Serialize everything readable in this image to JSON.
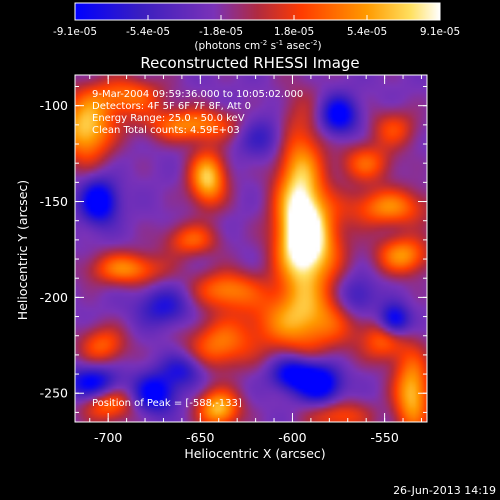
{
  "colorbar": {
    "tick_labels": [
      "-9.1e-05",
      "-5.4e-05",
      "-1.8e-05",
      "1.8e-05",
      "5.4e-05",
      "9.1e-05"
    ],
    "units_prefix": "(photons cm",
    "units_exp1": "-2",
    "units_mid": " s",
    "units_exp2": "-1",
    "units_mid2": " asec",
    "units_exp3": "-2",
    "units_suffix": ")"
  },
  "chart_data": {
    "type": "heatmap",
    "title": "Reconstructed RHESSI Image",
    "xlabel": "Heliocentric X (arcsec)",
    "ylabel": "Heliocentric Y (arcsec)",
    "xlim": [
      -718,
      -527
    ],
    "ylim": [
      -265,
      -84
    ],
    "xticks": [
      -700,
      -650,
      -600,
      -550
    ],
    "yticks": [
      -100,
      -150,
      -200,
      -250
    ],
    "color_range": [
      -9.1e-05,
      9.1e-05
    ],
    "colormap": [
      "#0000ff",
      "#3a1ec0",
      "#7a32b8",
      "#b02a40",
      "#ff3b00",
      "#ff9a00",
      "#ffe060",
      "#ffffff"
    ],
    "info_lines": [
      "9-Mar-2004 09:59:36.000 to 10:05:02.000",
      "Detectors: 4F 5F 6F 7F 8F, Att 0",
      "Energy Range: 25.0 - 50.0 keV",
      "Clean      Total counts: 4.59E+03"
    ],
    "position_label": "Position of Peak = [-588,-133]",
    "peak": [
      -588,
      -133
    ],
    "blobs": [
      {
        "x": -596,
        "y": -150,
        "sx": 9,
        "sy": 30,
        "amp": 1.0
      },
      {
        "x": -590,
        "y": -172,
        "sx": 12,
        "sy": 16,
        "amp": 0.85
      },
      {
        "x": -595,
        "y": -212,
        "sx": 22,
        "sy": 12,
        "amp": 0.75
      },
      {
        "x": -646,
        "y": -138,
        "sx": 7,
        "sy": 10,
        "amp": 0.95
      },
      {
        "x": -655,
        "y": -110,
        "sx": 18,
        "sy": 6,
        "amp": 0.7
      },
      {
        "x": -712,
        "y": -112,
        "sx": 10,
        "sy": 12,
        "amp": 0.95
      },
      {
        "x": -690,
        "y": -95,
        "sx": 14,
        "sy": 7,
        "amp": 0.6
      },
      {
        "x": -548,
        "y": -153,
        "sx": 15,
        "sy": 7,
        "amp": 0.7
      },
      {
        "x": -560,
        "y": -130,
        "sx": 10,
        "sy": 7,
        "amp": 0.55
      },
      {
        "x": -545,
        "y": -112,
        "sx": 9,
        "sy": 7,
        "amp": 0.45
      },
      {
        "x": -636,
        "y": -196,
        "sx": 12,
        "sy": 7,
        "amp": 0.65
      },
      {
        "x": -640,
        "y": -225,
        "sx": 12,
        "sy": 9,
        "amp": 0.6
      },
      {
        "x": -640,
        "y": -258,
        "sx": 8,
        "sy": 7,
        "amp": 0.9
      },
      {
        "x": -655,
        "y": -170,
        "sx": 10,
        "sy": 6,
        "amp": 0.55
      },
      {
        "x": -690,
        "y": -185,
        "sx": 14,
        "sy": 6,
        "amp": 0.7
      },
      {
        "x": -703,
        "y": -225,
        "sx": 9,
        "sy": 7,
        "amp": 0.55
      },
      {
        "x": -700,
        "y": -255,
        "sx": 10,
        "sy": 7,
        "amp": 0.65
      },
      {
        "x": -540,
        "y": -178,
        "sx": 10,
        "sy": 7,
        "amp": 0.75
      },
      {
        "x": -535,
        "y": -250,
        "sx": 7,
        "sy": 15,
        "amp": 0.9
      },
      {
        "x": -550,
        "y": -222,
        "sx": 8,
        "sy": 8,
        "amp": 0.55
      },
      {
        "x": -575,
        "y": -262,
        "sx": 12,
        "sy": 6,
        "amp": 0.5
      },
      {
        "x": -545,
        "y": -212,
        "sx": 6,
        "sy": 6,
        "amp": -0.9
      },
      {
        "x": -705,
        "y": -150,
        "sx": 7,
        "sy": 8,
        "amp": -0.9
      },
      {
        "x": -708,
        "y": -245,
        "sx": 10,
        "sy": 6,
        "amp": -0.8
      },
      {
        "x": -675,
        "y": -250,
        "sx": 8,
        "sy": 7,
        "amp": -0.8
      },
      {
        "x": -585,
        "y": -245,
        "sx": 8,
        "sy": 7,
        "amp": -0.9
      },
      {
        "x": -600,
        "y": -240,
        "sx": 8,
        "sy": 6,
        "amp": -0.8
      },
      {
        "x": -575,
        "y": -105,
        "sx": 7,
        "sy": 7,
        "amp": -0.8
      },
      {
        "x": -670,
        "y": -205,
        "sx": 10,
        "sy": 7,
        "amp": -0.5
      },
      {
        "x": -616,
        "y": -116,
        "sx": 10,
        "sy": 8,
        "amp": -0.4
      },
      {
        "x": -565,
        "y": -200,
        "sx": 8,
        "sy": 8,
        "amp": -0.5
      },
      {
        "x": -660,
        "y": -238,
        "sx": 8,
        "sy": 6,
        "amp": -0.5
      }
    ]
  },
  "footer": {
    "date": "26-Jun-2013 14:19"
  }
}
